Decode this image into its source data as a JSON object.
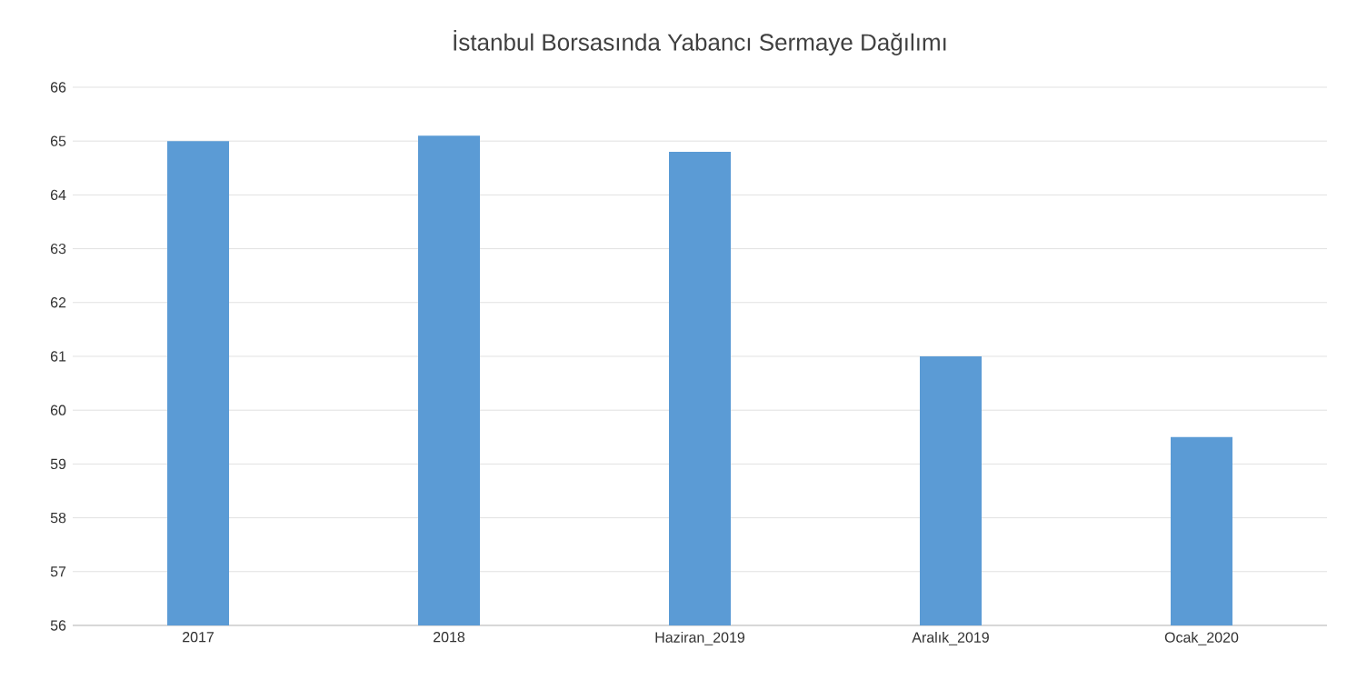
{
  "chart_data": {
    "type": "bar",
    "title": "İstanbul Borsasında Yabancı Sermaye Dağılımı",
    "categories": [
      "2017",
      "2018",
      "Haziran_2019",
      "Aralık_2019",
      "Ocak_2020"
    ],
    "values": [
      65.0,
      65.1,
      64.8,
      61.0,
      59.5
    ],
    "color": "#5b9bd5",
    "ylim": [
      56,
      66
    ],
    "yticks": [
      56,
      57,
      58,
      59,
      60,
      61,
      62,
      63,
      64,
      65,
      66
    ],
    "grid": "y"
  }
}
